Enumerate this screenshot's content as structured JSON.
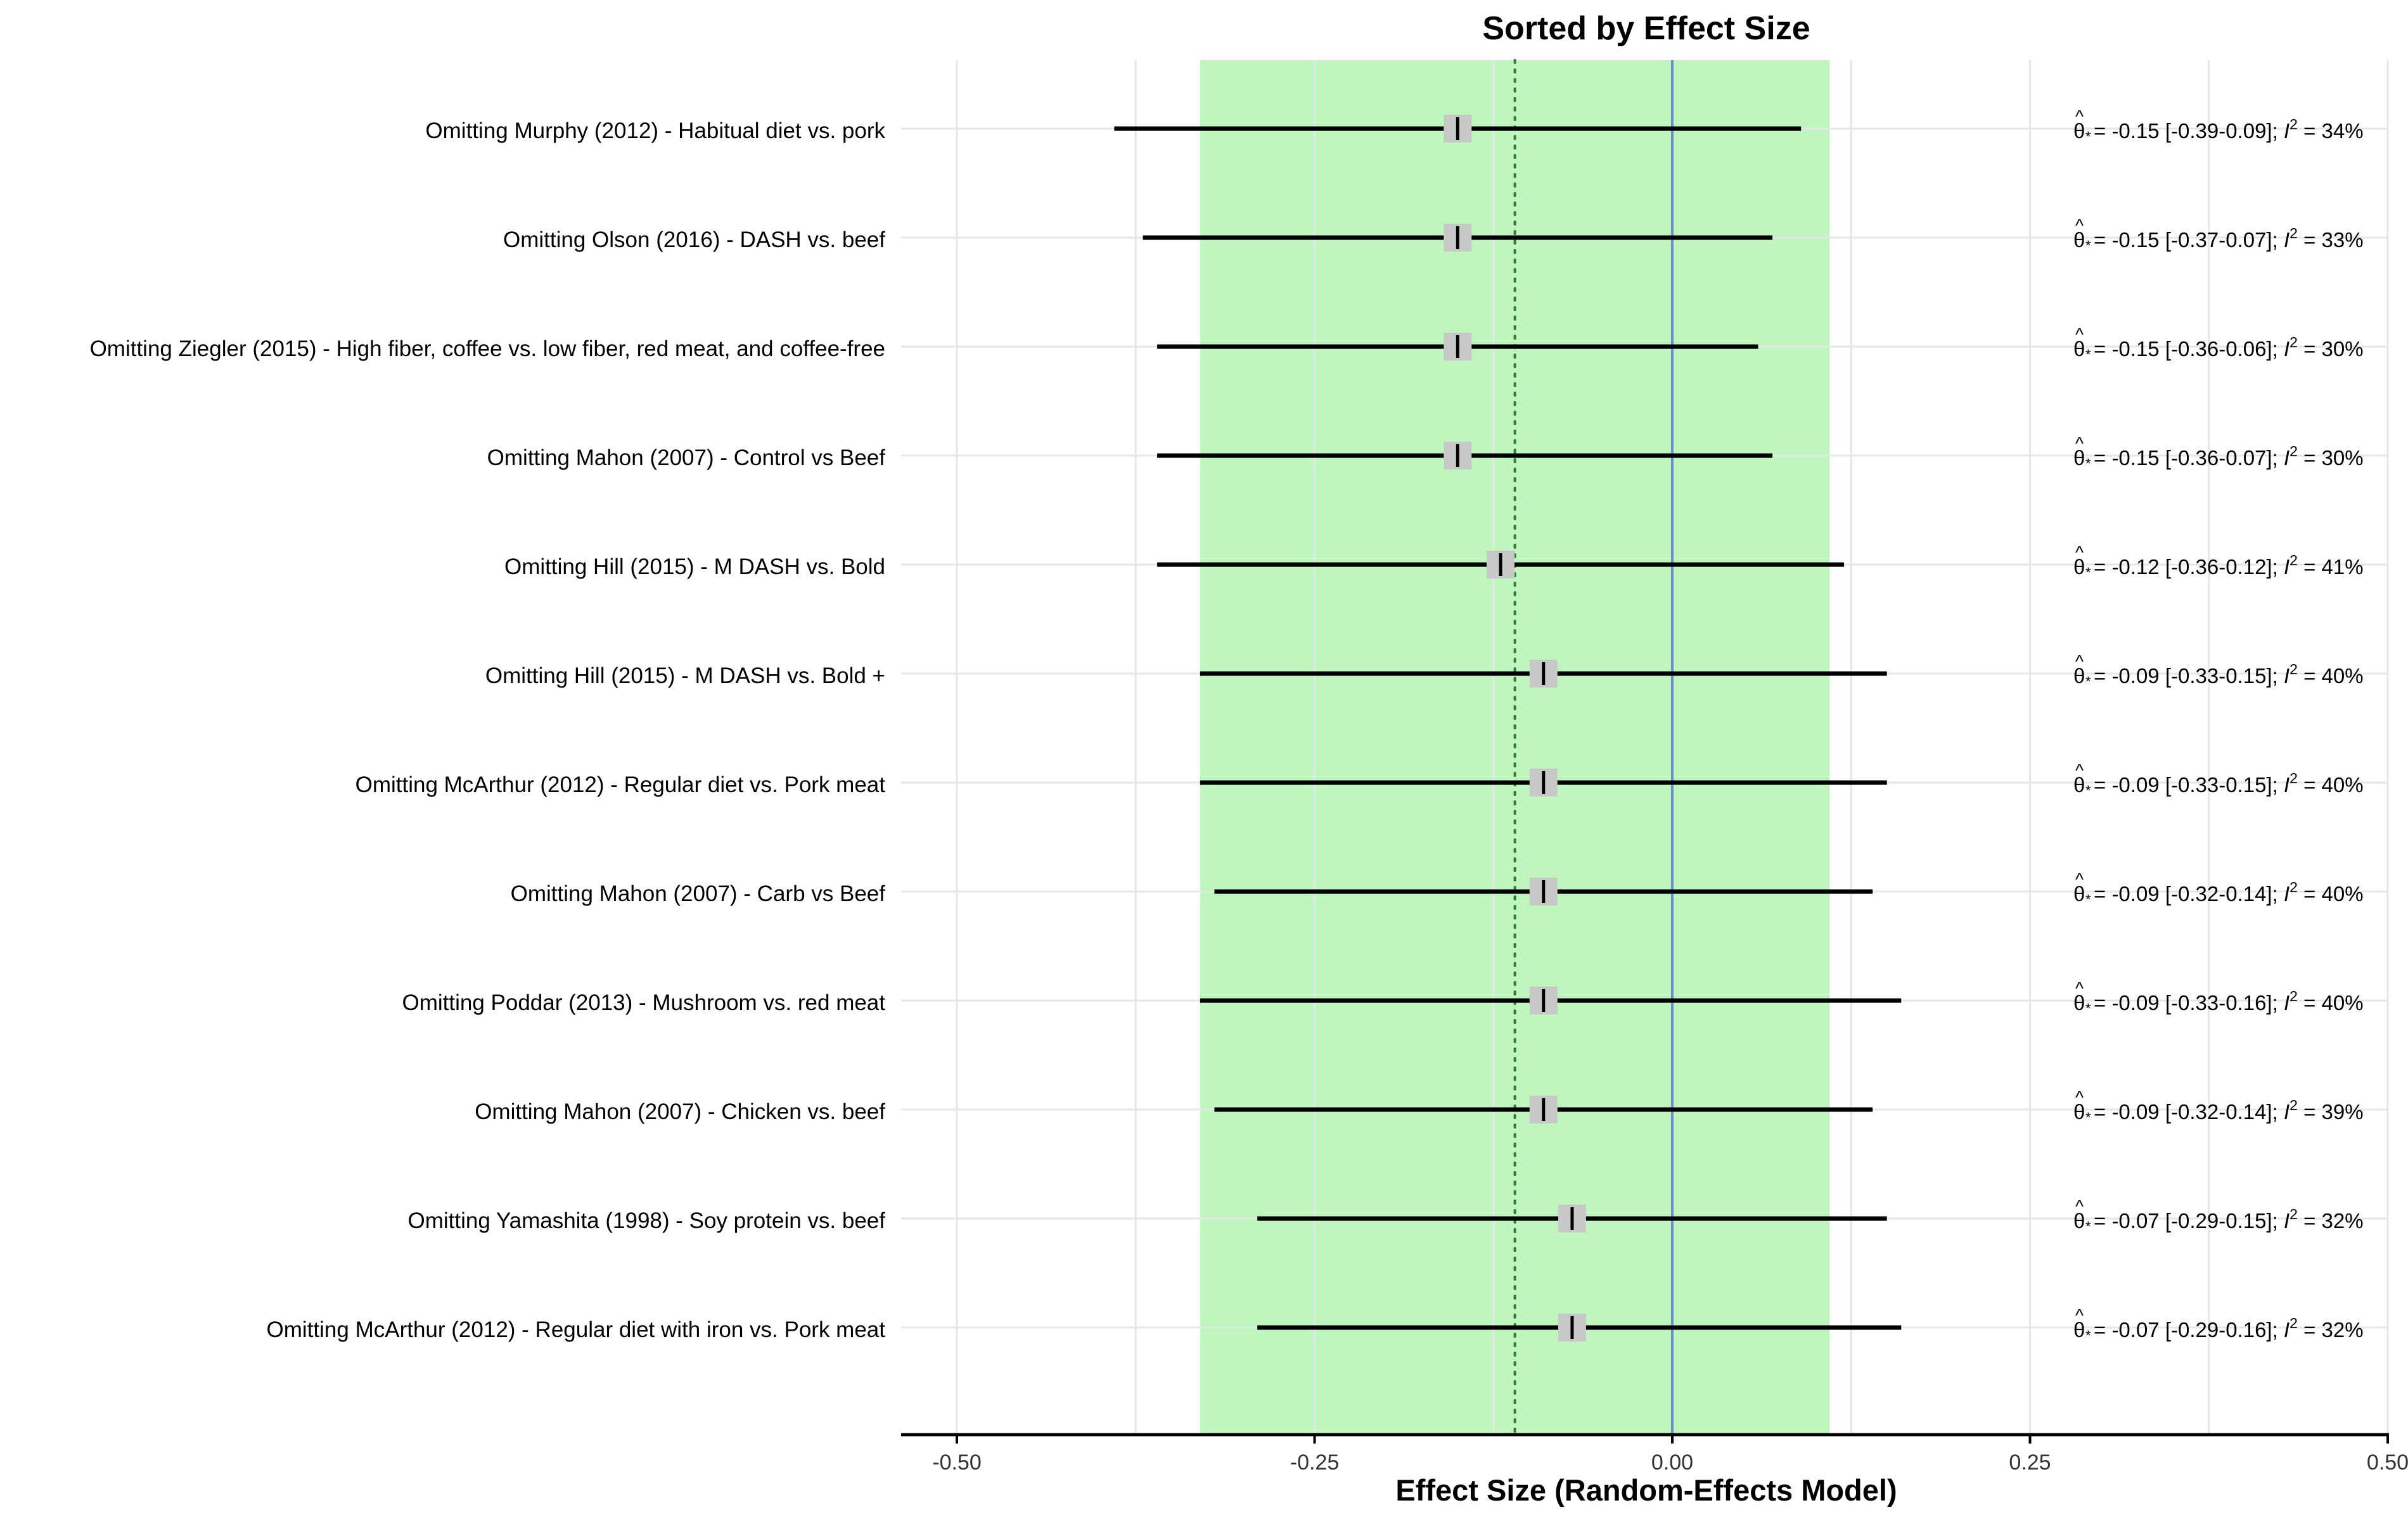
{
  "chart_data": {
    "type": "forest",
    "title": "Sorted by Effect Size",
    "xlabel": "Effect Size (Random-Effects Model)",
    "ylabel": "",
    "xlim": [
      -0.5,
      0.5
    ],
    "xticks": [
      -0.5,
      -0.25,
      0,
      0.25,
      0.5
    ],
    "xtick_labels": [
      "-0.50",
      "-0.25",
      "0.00",
      "0.25",
      "0.50"
    ],
    "grid": true,
    "reference_line": 0,
    "pooled_effect_line": -0.11,
    "prediction_band": [
      -0.33,
      0.11
    ],
    "colors": {
      "band": "#b8f5b8",
      "reference_line": "#6f8fc9",
      "pooled_line": "#2e7d32",
      "marker_box": "#c8c8c8",
      "ci_line": "#000000",
      "grid": "#e6e6e6"
    },
    "studies": [
      {
        "label": "Omitting Murphy (2012) - Habitual diet vs. pork",
        "effect": -0.15,
        "lower": -0.39,
        "upper": 0.09,
        "annotation": "-0.15 [-0.39-0.09]; ",
        "i2": "= 34%"
      },
      {
        "label": "Omitting Olson (2016) - DASH vs. beef",
        "effect": -0.15,
        "lower": -0.37,
        "upper": 0.07,
        "annotation": "-0.15 [-0.37-0.07]; ",
        "i2": "= 33%"
      },
      {
        "label": "Omitting Ziegler (2015) - High fiber, coffee vs. low fiber, red meat, and coffee-free",
        "effect": -0.15,
        "lower": -0.36,
        "upper": 0.06,
        "annotation": "-0.15 [-0.36-0.06]; ",
        "i2": "= 30%"
      },
      {
        "label": "Omitting Mahon (2007) - Control vs Beef",
        "effect": -0.15,
        "lower": -0.36,
        "upper": 0.07,
        "annotation": "-0.15 [-0.36-0.07]; ",
        "i2": "= 30%"
      },
      {
        "label": "Omitting Hill (2015) - M DASH vs. Bold",
        "effect": -0.12,
        "lower": -0.36,
        "upper": 0.12,
        "annotation": "-0.12 [-0.36-0.12]; ",
        "i2": "= 41%"
      },
      {
        "label": "Omitting Hill (2015) - M DASH vs. Bold +",
        "effect": -0.09,
        "lower": -0.33,
        "upper": 0.15,
        "annotation": "-0.09 [-0.33-0.15]; ",
        "i2": "= 40%"
      },
      {
        "label": "Omitting McArthur (2012) - Regular diet vs. Pork meat",
        "effect": -0.09,
        "lower": -0.33,
        "upper": 0.15,
        "annotation": "-0.09 [-0.33-0.15]; ",
        "i2": "= 40%"
      },
      {
        "label": "Omitting Mahon (2007) - Carb vs Beef",
        "effect": -0.09,
        "lower": -0.32,
        "upper": 0.14,
        "annotation": "-0.09 [-0.32-0.14]; ",
        "i2": "= 40%"
      },
      {
        "label": "Omitting Poddar (2013) - Mushroom vs. red meat",
        "effect": -0.09,
        "lower": -0.33,
        "upper": 0.16,
        "annotation": "-0.09 [-0.33-0.16]; ",
        "i2": "= 40%"
      },
      {
        "label": "Omitting Mahon (2007) - Chicken vs. beef",
        "effect": -0.09,
        "lower": -0.32,
        "upper": 0.14,
        "annotation": "-0.09 [-0.32-0.14]; ",
        "i2": "= 39%"
      },
      {
        "label": "Omitting Yamashita (1998) - Soy protein vs. beef",
        "effect": -0.07,
        "lower": -0.29,
        "upper": 0.15,
        "annotation": "-0.07 [-0.29-0.15]; ",
        "i2": "= 32%"
      },
      {
        "label": "Omitting McArthur (2012) - Regular diet with iron vs. Pork meat",
        "effect": -0.07,
        "lower": -0.29,
        "upper": 0.16,
        "annotation": "-0.07 [-0.29-0.16]; ",
        "i2": "= 32%"
      }
    ]
  }
}
